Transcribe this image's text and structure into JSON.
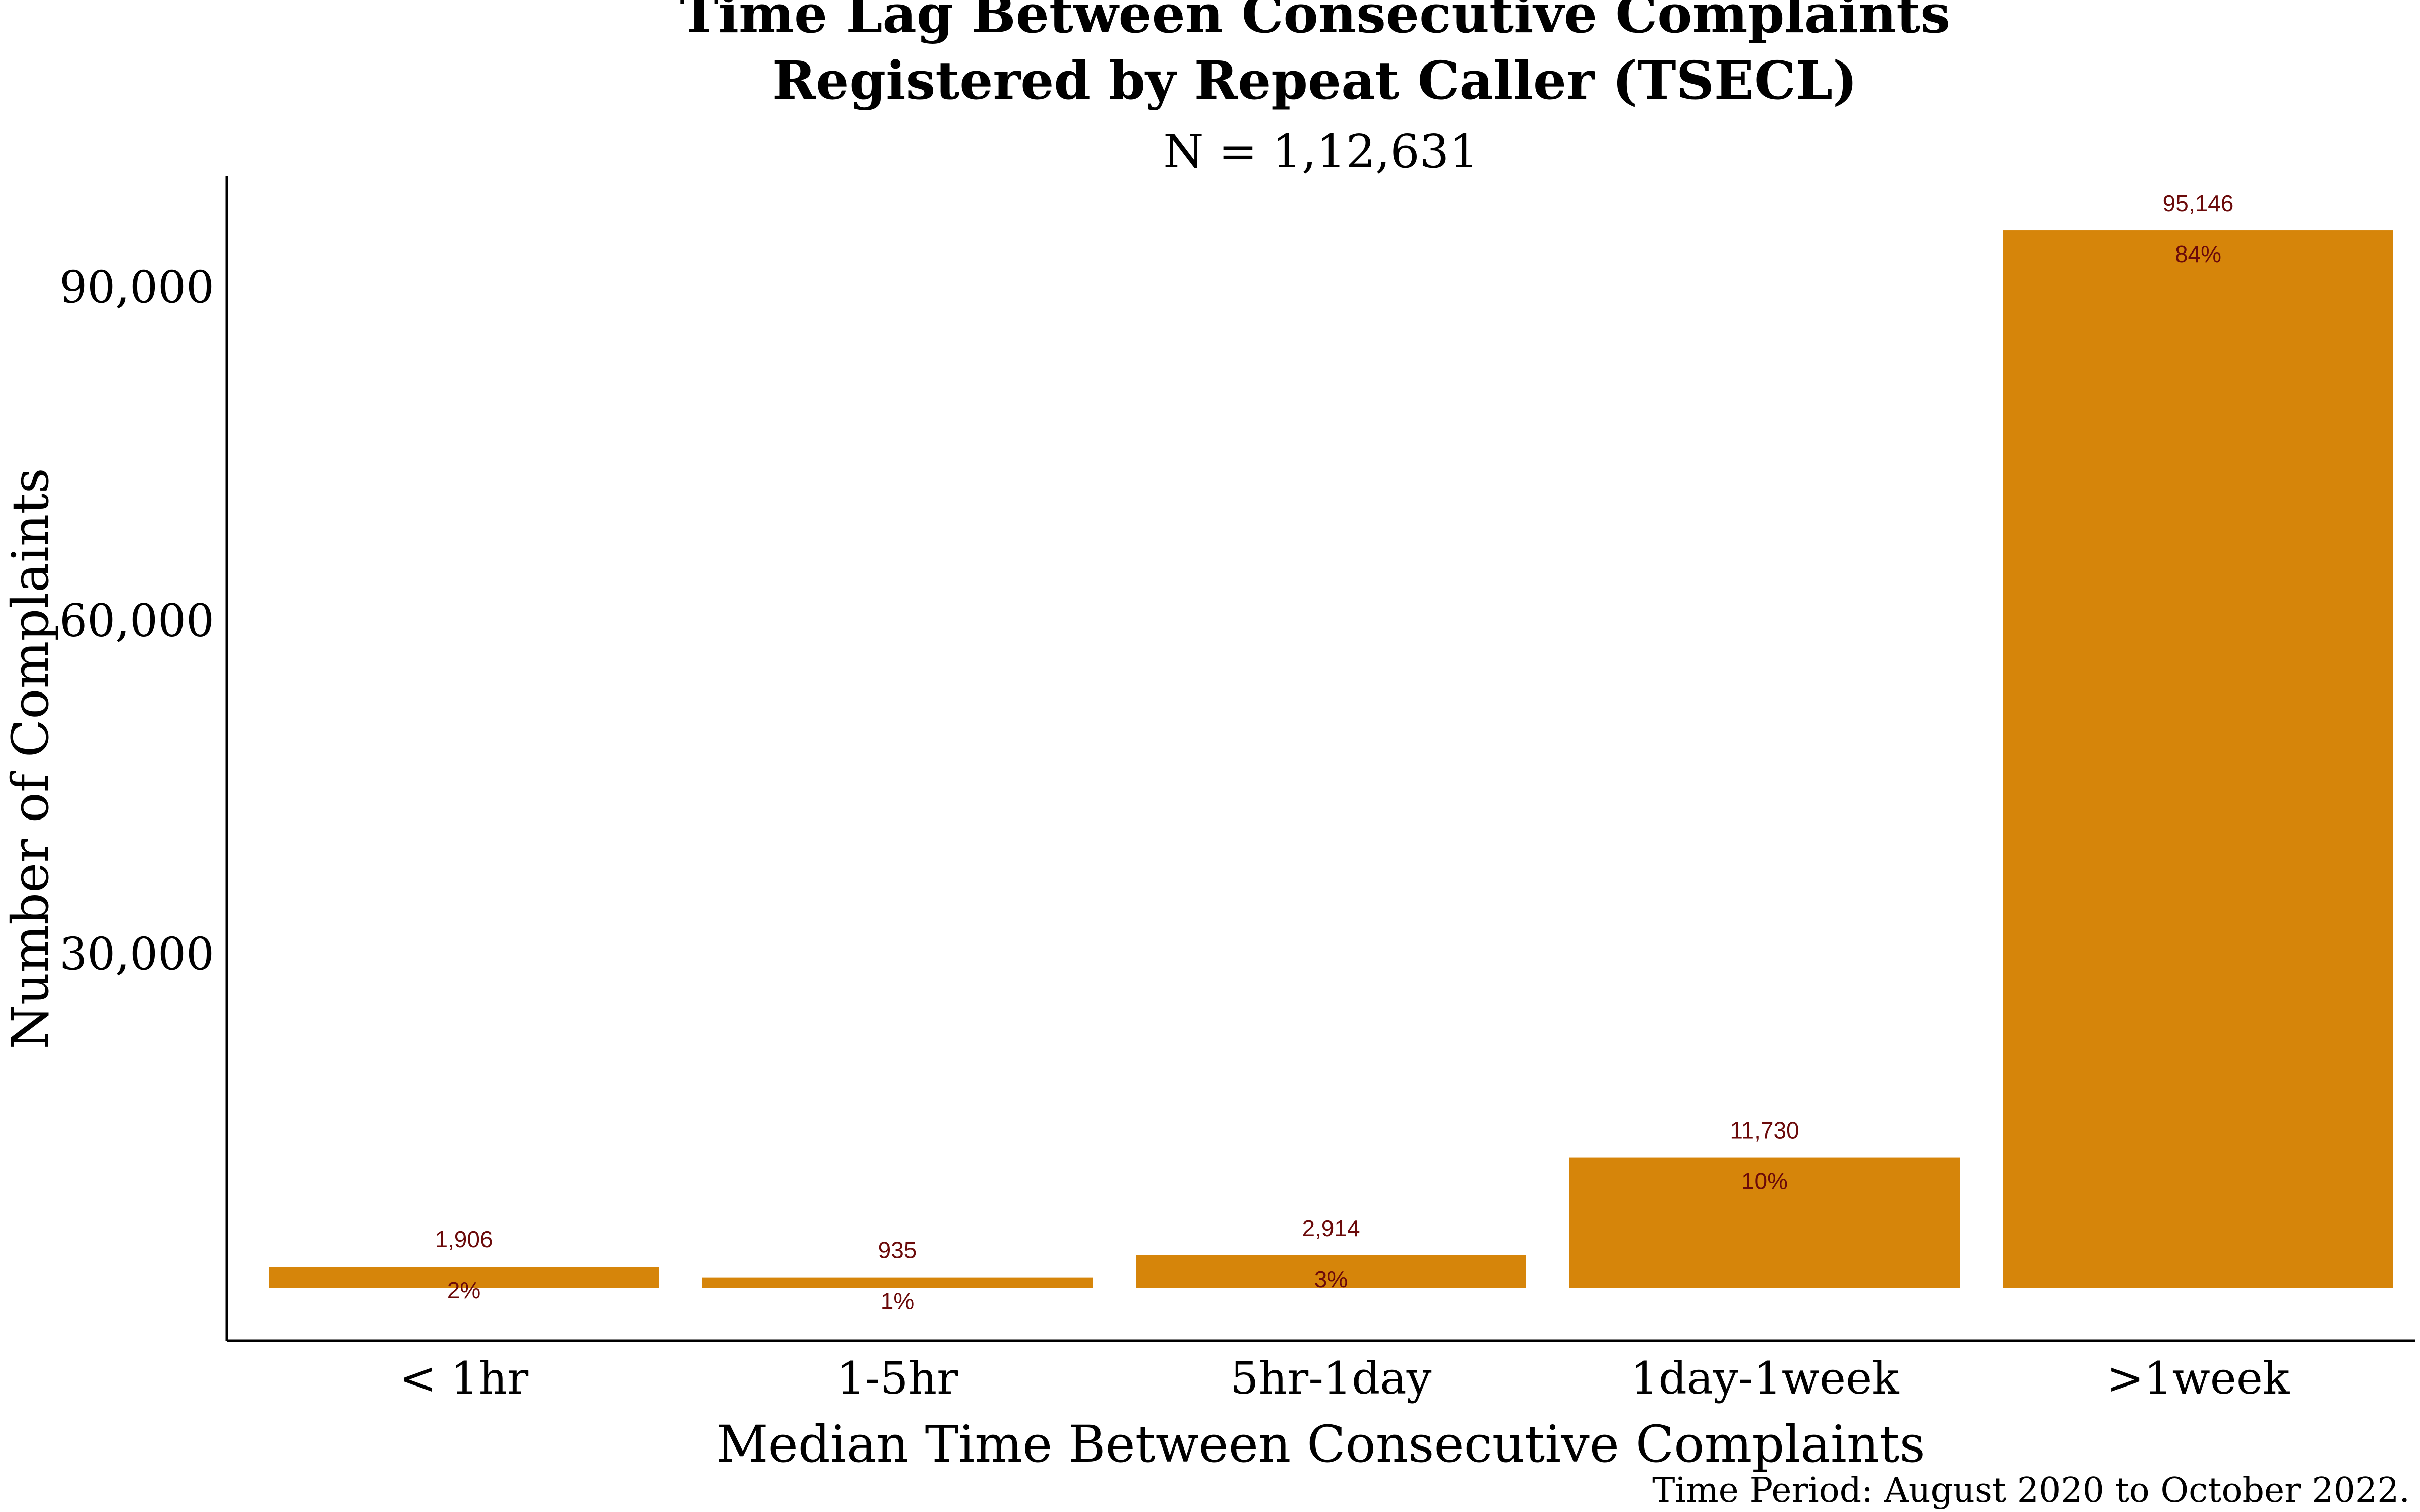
{
  "chart_data": {
    "type": "bar",
    "title_line1": "Time Lag Between Consecutive Complaints",
    "title_line2": "Registered by Repeat Caller (TSECL)",
    "subtitle": "N = 1,12,631",
    "xlabel": "Median Time Between Consecutive Complaints",
    "ylabel": "Number of Complaints",
    "caption": "Time Period: August 2020 to October 2022.",
    "categories": [
      "< 1hr",
      "1-5hr",
      "5hr-1day",
      "1day-1week",
      ">1week"
    ],
    "values": [
      1906,
      935,
      2914,
      11730,
      95146
    ],
    "value_labels": [
      "1,906",
      "935",
      "2,914",
      "11,730",
      "95,146"
    ],
    "percent_labels": [
      "2%",
      "1%",
      "3%",
      "10%",
      "84%"
    ],
    "y_ticks": [
      30000,
      60000,
      90000
    ],
    "y_tick_labels": [
      "30,000",
      "60,000",
      "90,000"
    ],
    "ylim": [
      -4750,
      100000
    ],
    "bar_color": "#d6850a",
    "label_color": "#6b0a0a",
    "grid": false,
    "legend": "none"
  }
}
